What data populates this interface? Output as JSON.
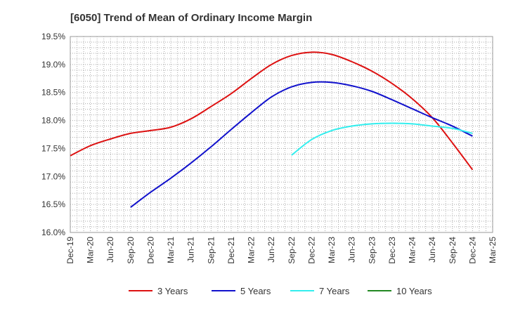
{
  "chart_data": {
    "type": "line",
    "title": "[6050]  Trend of Mean of Ordinary Income Margin",
    "xlabel": "",
    "ylabel": "",
    "categories": [
      "Dec-19",
      "Mar-20",
      "Jun-20",
      "Sep-20",
      "Dec-20",
      "Mar-21",
      "Jun-21",
      "Sep-21",
      "Dec-21",
      "Mar-22",
      "Jun-22",
      "Sep-22",
      "Dec-22",
      "Mar-23",
      "Jun-23",
      "Sep-23",
      "Dec-23",
      "Mar-24",
      "Jun-24",
      "Sep-24",
      "Dec-24",
      "Mar-25"
    ],
    "y_ticks": [
      "16.0%",
      "16.5%",
      "17.0%",
      "17.5%",
      "18.0%",
      "18.5%",
      "19.0%",
      "19.5%"
    ],
    "ylim": [
      16.0,
      19.5
    ],
    "grid": true,
    "legend_position": "bottom",
    "series": [
      {
        "name": "3 Years",
        "color": "#dd1111",
        "values": [
          17.37,
          17.55,
          17.67,
          17.77,
          17.82,
          17.88,
          18.03,
          18.25,
          18.48,
          18.75,
          19.0,
          19.16,
          19.22,
          19.18,
          19.05,
          18.88,
          18.66,
          18.39,
          18.05,
          17.6,
          17.12,
          null
        ]
      },
      {
        "name": "5 Years",
        "color": "#1111cc",
        "values": [
          null,
          null,
          null,
          16.45,
          16.72,
          16.97,
          17.24,
          17.53,
          17.84,
          18.14,
          18.42,
          18.6,
          18.68,
          18.68,
          18.62,
          18.52,
          18.37,
          18.21,
          18.05,
          17.9,
          17.72,
          null
        ]
      },
      {
        "name": "7 Years",
        "color": "#33eeee",
        "values": [
          null,
          null,
          null,
          null,
          null,
          null,
          null,
          null,
          null,
          null,
          null,
          17.38,
          17.66,
          17.82,
          17.9,
          17.94,
          17.95,
          17.94,
          17.9,
          17.86,
          17.77,
          null
        ]
      },
      {
        "name": "10 Years",
        "color": "#228822",
        "values": [
          null,
          null,
          null,
          null,
          null,
          null,
          null,
          null,
          null,
          null,
          null,
          null,
          null,
          null,
          null,
          null,
          null,
          null,
          null,
          null,
          null,
          null
        ]
      }
    ]
  }
}
